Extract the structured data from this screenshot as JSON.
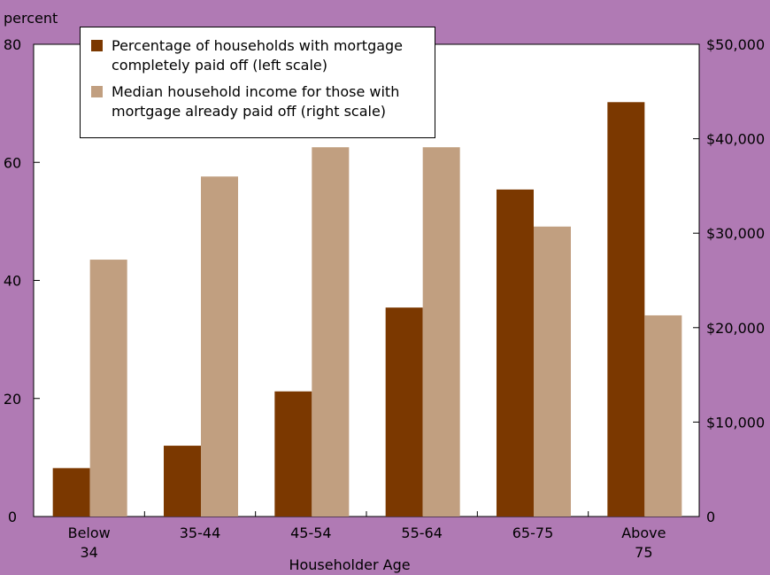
{
  "chart_data": {
    "type": "bar",
    "title": "",
    "xlabel": "Householder Age",
    "ylabel_left": "percent",
    "categories": [
      "Below 34",
      "35-44",
      "45-54",
      "55-64",
      "65-75",
      "Above 75"
    ],
    "category_lines": [
      [
        "Below",
        "34"
      ],
      [
        "35-44"
      ],
      [
        "45-54"
      ],
      [
        "55-64"
      ],
      [
        "65-75"
      ],
      [
        "Above",
        "75"
      ]
    ],
    "left_axis": {
      "min": 0,
      "max": 80,
      "ticks": [
        0,
        20,
        40,
        60,
        80
      ],
      "tick_labels": [
        "0",
        "20",
        "40",
        "60",
        "80"
      ]
    },
    "right_axis": {
      "min": 0,
      "max": 50000,
      "ticks": [
        0,
        10000,
        20000,
        30000,
        40000,
        50000
      ],
      "tick_labels": [
        "0",
        "$10,000",
        "$20,000",
        "$30,000",
        "$40,000",
        "$50,000"
      ]
    },
    "series": [
      {
        "name": "Percentage of households with mortgage completely paid off (left scale)",
        "axis": "left",
        "color": "#7b3800",
        "values": [
          8.2,
          12,
          21.2,
          35.4,
          55.4,
          70.2
        ]
      },
      {
        "name": "Median household income for those with mortgage already paid off (right scale)",
        "axis": "right",
        "color": "#c19f80",
        "values": [
          27200,
          36000,
          39100,
          39100,
          30700,
          21300
        ]
      }
    ],
    "grid": false,
    "legend_position": "top-left"
  }
}
